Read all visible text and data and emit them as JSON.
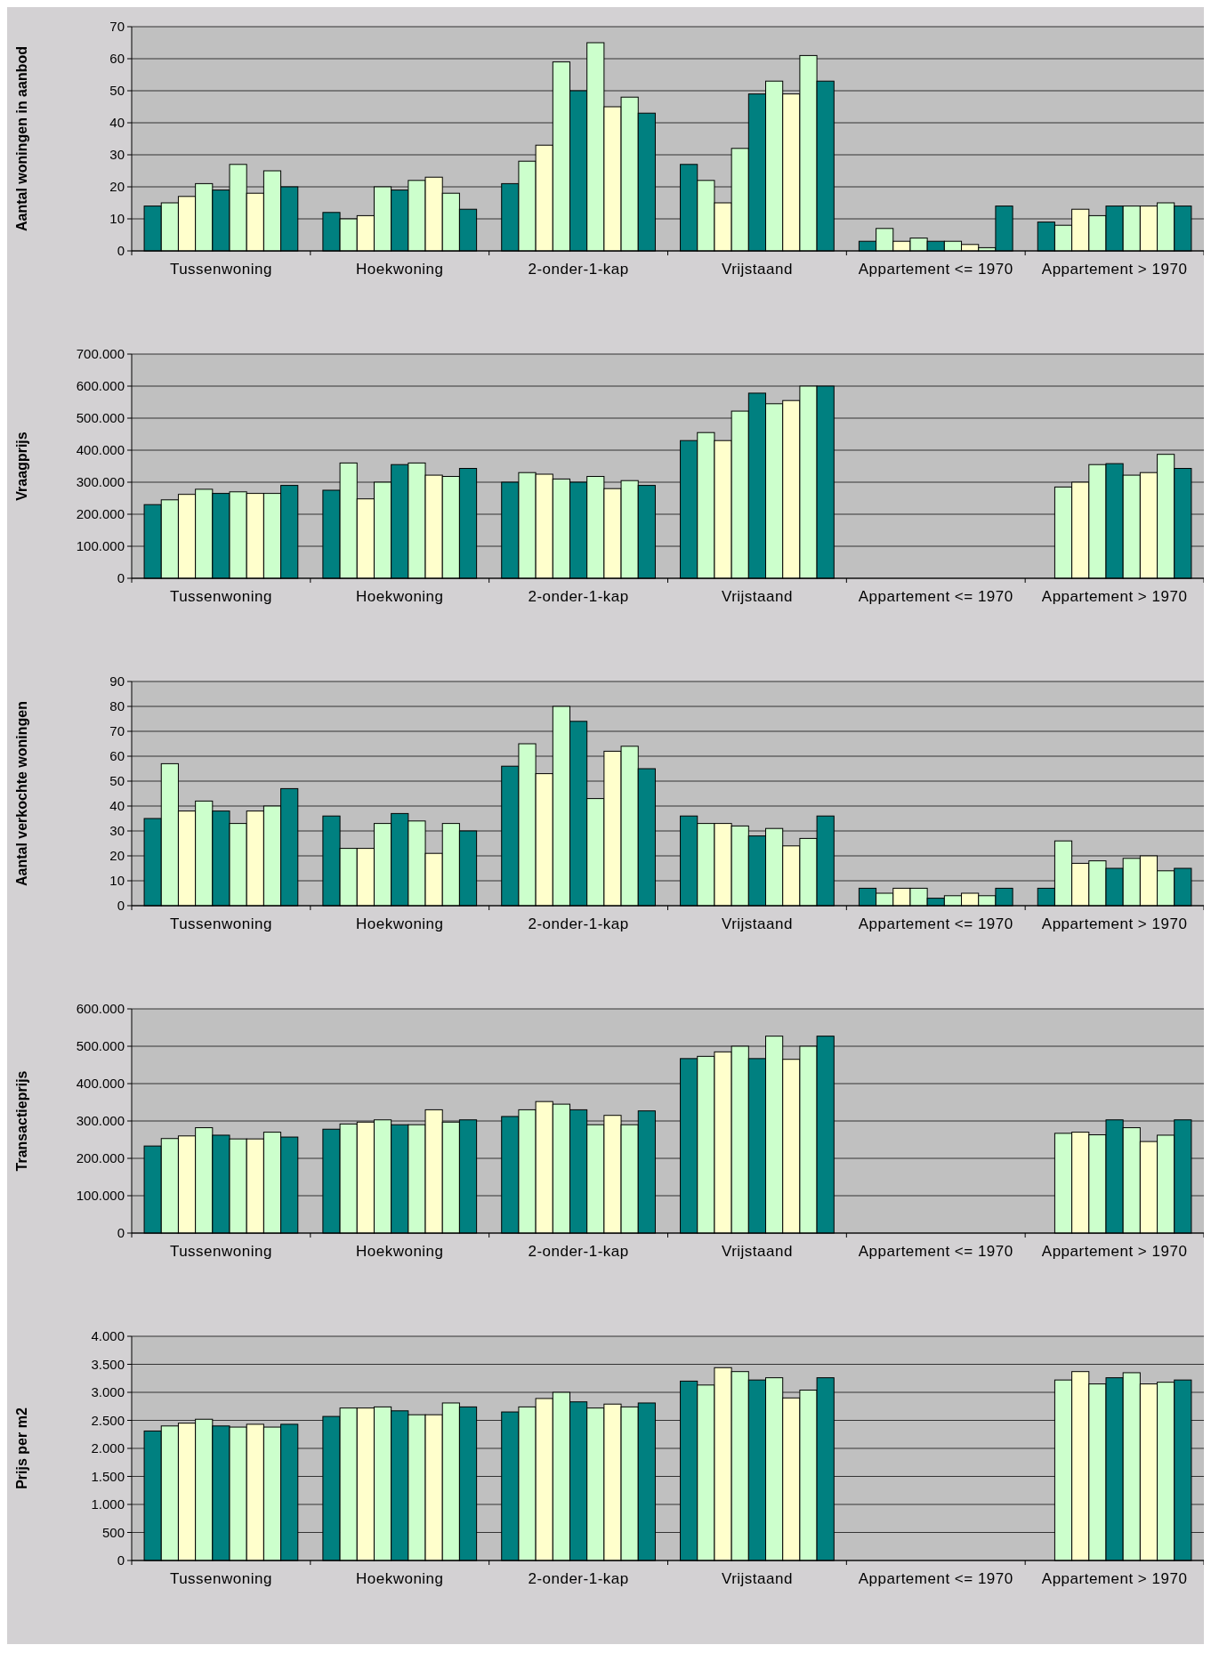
{
  "chart_data": [
    {
      "type": "bar",
      "ylabel": "Aantal woningen in aanbod",
      "categories": [
        "Tussenwoning",
        "Hoekwoning",
        "2-onder-1-kap",
        "Vrijstaand",
        "Appartement <= 1970",
        "Appartement > 1970"
      ],
      "ylim": [
        0,
        70
      ],
      "yticks": [
        0,
        10,
        20,
        30,
        40,
        50,
        60,
        70
      ],
      "grid": "y",
      "series": [
        {
          "color": "#008080",
          "values": [
            14,
            12,
            21,
            27,
            3,
            9
          ]
        },
        {
          "color": "#ccffcc",
          "values": [
            15,
            10,
            28,
            22,
            7,
            8
          ]
        },
        {
          "color": "#ffffcc",
          "values": [
            17,
            11,
            33,
            15,
            3,
            13
          ]
        },
        {
          "color": "#ccffcc",
          "values": [
            21,
            20,
            59,
            32,
            4,
            11
          ]
        },
        {
          "color": "#008080",
          "values": [
            19,
            19,
            50,
            49,
            3,
            14
          ]
        },
        {
          "color": "#ccffcc",
          "values": [
            27,
            22,
            65,
            53,
            3,
            14
          ]
        },
        {
          "color": "#ffffcc",
          "values": [
            18,
            23,
            45,
            49,
            2,
            14
          ]
        },
        {
          "color": "#ccffcc",
          "values": [
            25,
            18,
            48,
            61,
            1,
            15
          ]
        },
        {
          "color": "#008080",
          "values": [
            20,
            13,
            43,
            53,
            14,
            14
          ]
        }
      ]
    },
    {
      "type": "bar",
      "ylabel": "Vraagprijs",
      "categories": [
        "Tussenwoning",
        "Hoekwoning",
        "2-onder-1-kap",
        "Vrijstaand",
        "Appartement <= 1970",
        "Appartement > 1970"
      ],
      "ylim": [
        0,
        700000
      ],
      "yticks": [
        0,
        {
          "value": 100000,
          "label": "100.000"
        },
        {
          "value": 200000,
          "label": "200.000"
        },
        {
          "value": 300000,
          "label": "300.000"
        },
        {
          "value": 400000,
          "label": "400.000"
        },
        {
          "value": 500000,
          "label": "500.000"
        },
        {
          "value": 600000,
          "label": "600.000"
        },
        {
          "value": 700000,
          "label": "700.000"
        }
      ],
      "grid": "y",
      "series": [
        {
          "color": "#008080",
          "values": [
            230000,
            275000,
            300000,
            430000,
            null,
            null
          ]
        },
        {
          "color": "#ccffcc",
          "values": [
            245000,
            360000,
            330000,
            455000,
            null,
            285000
          ]
        },
        {
          "color": "#ffffcc",
          "values": [
            262000,
            248000,
            325000,
            430000,
            null,
            300000
          ]
        },
        {
          "color": "#ccffcc",
          "values": [
            278000,
            300000,
            310000,
            522000,
            null,
            355000
          ]
        },
        {
          "color": "#008080",
          "values": [
            265000,
            355000,
            300000,
            578000,
            null,
            358000
          ]
        },
        {
          "color": "#ccffcc",
          "values": [
            270000,
            360000,
            318000,
            545000,
            null,
            322000
          ]
        },
        {
          "color": "#ffffcc",
          "values": [
            265000,
            322000,
            280000,
            555000,
            null,
            330000
          ]
        },
        {
          "color": "#ccffcc",
          "values": [
            265000,
            318000,
            305000,
            600000,
            null,
            387000
          ]
        },
        {
          "color": "#008080",
          "values": [
            290000,
            343000,
            290000,
            600000,
            null,
            343000
          ]
        }
      ]
    },
    {
      "type": "bar",
      "ylabel": "Aantal verkochte woningen",
      "categories": [
        "Tussenwoning",
        "Hoekwoning",
        "2-onder-1-kap",
        "Vrijstaand",
        "Appartement <= 1970",
        "Appartement > 1970"
      ],
      "ylim": [
        0,
        90
      ],
      "yticks": [
        0,
        10,
        20,
        30,
        40,
        50,
        60,
        70,
        80,
        90
      ],
      "grid": "y",
      "series": [
        {
          "color": "#008080",
          "values": [
            35,
            36,
            56,
            36,
            7,
            7
          ]
        },
        {
          "color": "#ccffcc",
          "values": [
            57,
            23,
            65,
            33,
            5,
            26
          ]
        },
        {
          "color": "#ffffcc",
          "values": [
            38,
            23,
            53,
            33,
            7,
            17
          ]
        },
        {
          "color": "#ccffcc",
          "values": [
            42,
            33,
            80,
            32,
            7,
            18
          ]
        },
        {
          "color": "#008080",
          "values": [
            38,
            37,
            74,
            28,
            3,
            15
          ]
        },
        {
          "color": "#ccffcc",
          "values": [
            33,
            34,
            43,
            31,
            4,
            19
          ]
        },
        {
          "color": "#ffffcc",
          "values": [
            38,
            21,
            62,
            24,
            5,
            20
          ]
        },
        {
          "color": "#ccffcc",
          "values": [
            40,
            33,
            64,
            27,
            4,
            14
          ]
        },
        {
          "color": "#008080",
          "values": [
            47,
            30,
            55,
            36,
            7,
            15
          ]
        }
      ]
    },
    {
      "type": "bar",
      "ylabel": "Transactieprijs",
      "categories": [
        "Tussenwoning",
        "Hoekwoning",
        "2-onder-1-kap",
        "Vrijstaand",
        "Appartement <= 1970",
        "Appartement > 1970"
      ],
      "ylim": [
        0,
        600000
      ],
      "yticks": [
        0,
        {
          "value": 100000,
          "label": "100.000"
        },
        {
          "value": 200000,
          "label": "200.000"
        },
        {
          "value": 300000,
          "label": "300.000"
        },
        {
          "value": 400000,
          "label": "400.000"
        },
        {
          "value": 500000,
          "label": "500.000"
        },
        {
          "value": 600000,
          "label": "600.000"
        }
      ],
      "grid": "y",
      "series": [
        {
          "color": "#008080",
          "values": [
            233000,
            278000,
            312000,
            467000,
            null,
            null
          ]
        },
        {
          "color": "#ccffcc",
          "values": [
            253000,
            292000,
            330000,
            473000,
            null,
            267000
          ]
        },
        {
          "color": "#ffffcc",
          "values": [
            260000,
            297000,
            352000,
            485000,
            null,
            270000
          ]
        },
        {
          "color": "#ccffcc",
          "values": [
            282000,
            303000,
            345000,
            500000,
            null,
            263000
          ]
        },
        {
          "color": "#008080",
          "values": [
            262000,
            290000,
            330000,
            467000,
            null,
            303000
          ]
        },
        {
          "color": "#ccffcc",
          "values": [
            252000,
            290000,
            290000,
            527000,
            null,
            282000
          ]
        },
        {
          "color": "#ffffcc",
          "values": [
            252000,
            330000,
            315000,
            465000,
            null,
            245000
          ]
        },
        {
          "color": "#ccffcc",
          "values": [
            270000,
            297000,
            290000,
            500000,
            null,
            262000
          ]
        },
        {
          "color": "#008080",
          "values": [
            257000,
            303000,
            327000,
            527000,
            null,
            303000
          ]
        }
      ]
    },
    {
      "type": "bar",
      "ylabel": "Prijs per m2",
      "categories": [
        "Tussenwoning",
        "Hoekwoning",
        "2-onder-1-kap",
        "Vrijstaand",
        "Appartement <= 1970",
        "Appartement > 1970"
      ],
      "ylim": [
        0,
        4000
      ],
      "yticks": [
        0,
        500,
        {
          "value": 1000,
          "label": "1.000"
        },
        {
          "value": 1500,
          "label": "1.500"
        },
        {
          "value": 2000,
          "label": "2.000"
        },
        {
          "value": 2500,
          "label": "2.500"
        },
        {
          "value": 3000,
          "label": "3.000"
        },
        {
          "value": 3500,
          "label": "3.500"
        },
        {
          "value": 4000,
          "label": "4.000"
        }
      ],
      "grid": "y",
      "series": [
        {
          "color": "#008080",
          "values": [
            2310,
            2570,
            2650,
            3200,
            null,
            null
          ]
        },
        {
          "color": "#ccffcc",
          "values": [
            2400,
            2720,
            2740,
            3130,
            null,
            3220
          ]
        },
        {
          "color": "#ffffcc",
          "values": [
            2450,
            2720,
            2890,
            3440,
            null,
            3370
          ]
        },
        {
          "color": "#ccffcc",
          "values": [
            2520,
            2740,
            3000,
            3370,
            null,
            3150
          ]
        },
        {
          "color": "#008080",
          "values": [
            2400,
            2670,
            2830,
            3220,
            null,
            3260
          ]
        },
        {
          "color": "#ccffcc",
          "values": [
            2380,
            2600,
            2720,
            3260,
            null,
            3350
          ]
        },
        {
          "color": "#ffffcc",
          "values": [
            2430,
            2600,
            2790,
            2900,
            null,
            3150
          ]
        },
        {
          "color": "#ccffcc",
          "values": [
            2380,
            2810,
            2740,
            3040,
            null,
            3180
          ]
        },
        {
          "color": "#008080",
          "values": [
            2430,
            2740,
            2810,
            3260,
            null,
            3220
          ]
        }
      ]
    }
  ]
}
